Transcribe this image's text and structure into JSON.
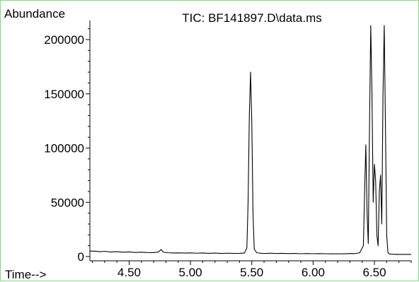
{
  "chart_data": {
    "type": "line",
    "title": "TIC: BF141897.D\\data.ms",
    "ylabel": "Abundance",
    "xlabel": "Time-->",
    "xlim": [
      4.18,
      6.8
    ],
    "ylim": [
      0,
      215000
    ],
    "xticks": [
      4.5,
      5.0,
      5.5,
      6.0,
      6.5
    ],
    "xtick_labels": [
      "4.50",
      "5.00",
      "5.50",
      "6.00",
      "6.50"
    ],
    "yticks": [
      0,
      50000,
      100000,
      150000,
      200000
    ],
    "ytick_labels": [
      "0",
      "50000",
      "100000",
      "150000",
      "200000"
    ],
    "grid": false,
    "legend": "none",
    "colors": {
      "line": "#000000",
      "border": "#7fdc7f"
    },
    "series": [
      {
        "x": [
          4.18,
          4.22,
          4.26,
          4.3,
          4.35,
          4.4,
          4.45,
          4.5,
          4.55,
          4.6,
          4.65,
          4.7,
          4.74,
          4.76,
          4.78,
          4.82,
          4.86,
          4.9,
          4.95,
          5.0,
          5.05,
          5.1,
          5.15,
          5.2,
          5.25,
          5.3,
          5.35,
          5.4,
          5.44,
          5.46,
          5.47,
          5.48,
          5.49,
          5.5,
          5.51,
          5.52,
          5.54,
          5.58,
          5.62,
          5.66,
          5.7,
          5.75,
          5.8,
          5.85,
          5.9,
          5.95,
          6.0,
          6.05,
          6.1,
          6.15,
          6.2,
          6.25,
          6.3,
          6.34,
          6.38,
          6.41,
          6.42,
          6.43,
          6.44,
          6.45,
          6.46,
          6.47,
          6.48,
          6.49,
          6.5,
          6.51,
          6.52,
          6.53,
          6.54,
          6.55,
          6.56,
          6.57,
          6.58,
          6.59,
          6.6,
          6.61,
          6.62,
          6.63,
          6.64,
          6.65,
          6.66,
          6.67,
          6.68,
          6.7,
          6.72,
          6.74,
          6.76,
          6.78,
          6.8
        ],
        "y": [
          5000,
          5000,
          4500,
          4800,
          4200,
          4500,
          4000,
          4300,
          3800,
          4000,
          3700,
          3600,
          4200,
          6500,
          4000,
          3500,
          3300,
          3400,
          3200,
          3400,
          3100,
          3300,
          3000,
          3200,
          2900,
          3100,
          2900,
          3000,
          3200,
          8000,
          50000,
          130000,
          170000,
          125000,
          40000,
          7000,
          3500,
          3000,
          2900,
          3100,
          2800,
          3000,
          2700,
          2900,
          2600,
          2800,
          2600,
          2700,
          2600,
          2500,
          2600,
          2500,
          2800,
          2700,
          3500,
          10000,
          60000,
          103000,
          40000,
          12000,
          120000,
          213000,
          150000,
          50000,
          85000,
          70000,
          20000,
          10000,
          60000,
          75000,
          30000,
          150000,
          213000,
          120000,
          20000,
          4000,
          2500,
          2300,
          2200,
          2100,
          2200,
          2000,
          2100,
          2000,
          2000,
          2000,
          2000,
          2000,
          2000
        ]
      }
    ]
  }
}
